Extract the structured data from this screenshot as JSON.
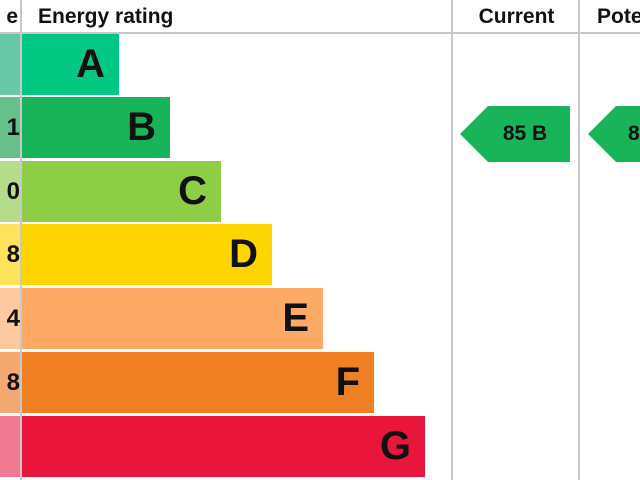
{
  "headers": {
    "score": "e",
    "rating": "Energy rating",
    "current": "Current",
    "potential": "Pote"
  },
  "chart_data": {
    "type": "bar",
    "categories": [
      "A",
      "B",
      "C",
      "D",
      "E",
      "F",
      "G"
    ],
    "score_fragments": [
      "",
      "1",
      "0",
      "8",
      "4",
      "8",
      ""
    ],
    "colors": [
      "#00c781",
      "#19b459",
      "#8dce46",
      "#ffd500",
      "#fcaa65",
      "#ef8023",
      "#e9153b"
    ],
    "strip_colors": [
      "#66c8a6",
      "#66c08a",
      "#b5dc88",
      "#ffe35c",
      "#fdcaa0",
      "#f4a970",
      "#f07890"
    ],
    "current": {
      "value": 85,
      "band": "B",
      "label": "85 B",
      "color": "#19b459"
    },
    "potential": {
      "label": "8",
      "color": "#19b459"
    }
  }
}
